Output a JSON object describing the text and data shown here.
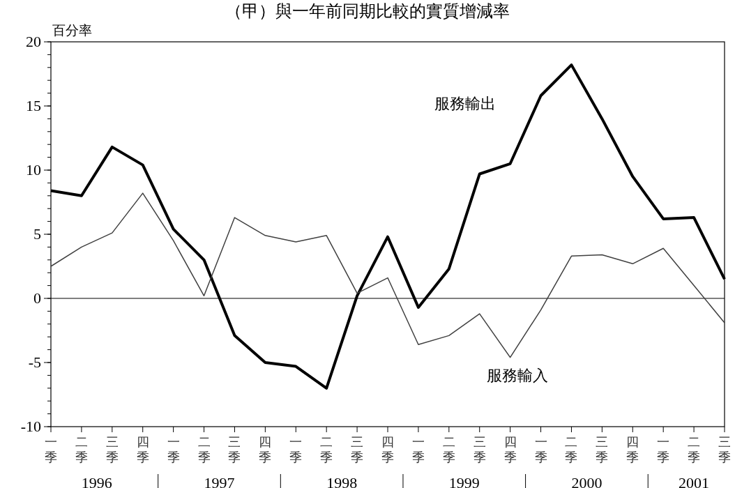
{
  "chart_data": {
    "type": "line",
    "title": "（甲）與一年前同期比較的實質增減率",
    "ylabel": "百分率",
    "categories": [
      "一季",
      "二季",
      "三季",
      "四季",
      "一季",
      "二季",
      "三季",
      "四季",
      "一季",
      "二季",
      "三季",
      "四季",
      "一季",
      "二季",
      "三季",
      "四季",
      "一季",
      "二季",
      "三季",
      "四季",
      "一季",
      "二季",
      "三季"
    ],
    "annotations": [
      "1996",
      "1997",
      "1998",
      "1999",
      "2000",
      "2001"
    ],
    "series": [
      {
        "name": "服務輸出",
        "color": "#000000",
        "values": [
          8.4,
          8.0,
          11.8,
          10.4,
          5.4,
          3.0,
          -2.9,
          -5.0,
          -5.3,
          -7.0,
          0.2,
          4.8,
          -0.7,
          2.3,
          9.7,
          10.5,
          15.8,
          18.2,
          14.0,
          9.5,
          6.2,
          6.3,
          1.5
        ]
      },
      {
        "name": "服務輸入",
        "color": "#404040",
        "values": [
          2.5,
          4.0,
          5.1,
          8.2,
          4.5,
          0.2,
          6.3,
          4.9,
          4.4,
          4.9,
          0.4,
          1.6,
          -3.6,
          -2.9,
          -1.2,
          -4.6,
          -0.9,
          3.3,
          3.4,
          2.7,
          3.9,
          1.0,
          -1.9
        ]
      }
    ],
    "ylim": [
      -10,
      20
    ],
    "yticks": [
      -10,
      -5,
      0,
      5,
      10,
      15,
      20
    ],
    "ref_lines": [
      {
        "axis": "y",
        "value": 0,
        "color": "#000000"
      }
    ],
    "grid": false,
    "legend": false,
    "line_style": "solid",
    "marker": "none"
  }
}
